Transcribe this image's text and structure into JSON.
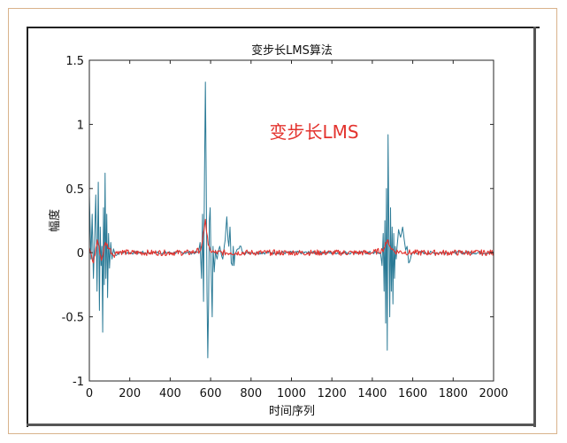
{
  "chart_data": {
    "type": "line",
    "title": "变步长LMS算法",
    "xlabel": "时间序列",
    "ylabel": "幅度",
    "xlim": [
      0,
      2000
    ],
    "ylim": [
      -1,
      1.5
    ],
    "xticks": [
      "0",
      "200",
      "400",
      "600",
      "800",
      "1000",
      "1200",
      "1400",
      "1600",
      "1800",
      "2000"
    ],
    "yticks": [
      "1.5",
      "1",
      "0.5",
      "0",
      "-0.5",
      "-1"
    ],
    "grid": false,
    "legend": "none",
    "annotation": {
      "text": "变步长LMS",
      "color": "#e3332e"
    },
    "series": [
      {
        "color": "#2a7a96",
        "points": [
          [
            0,
            0.45
          ],
          [
            8,
            -0.05
          ],
          [
            14,
            0.3
          ],
          [
            20,
            -0.2
          ],
          [
            26,
            0.1
          ],
          [
            32,
            0.45
          ],
          [
            38,
            -0.3
          ],
          [
            44,
            0.55
          ],
          [
            50,
            -0.45
          ],
          [
            54,
            0.2
          ],
          [
            58,
            -0.1
          ],
          [
            62,
            0.05
          ],
          [
            66,
            -0.62
          ],
          [
            70,
            0.35
          ],
          [
            74,
            -0.25
          ],
          [
            78,
            0.62
          ],
          [
            82,
            -0.2
          ],
          [
            86,
            0.3
          ],
          [
            90,
            -0.35
          ],
          [
            95,
            0.15
          ],
          [
            100,
            -0.12
          ],
          [
            106,
            0.08
          ],
          [
            112,
            -0.05
          ],
          [
            120,
            0.03
          ],
          [
            130,
            -0.02
          ],
          [
            150,
            0.0
          ],
          [
            200,
            0.0
          ],
          [
            300,
            0.0
          ],
          [
            400,
            0.0
          ],
          [
            500,
            0.0
          ],
          [
            540,
            0.0
          ],
          [
            548,
            0.08
          ],
          [
            555,
            -0.2
          ],
          [
            560,
            0.3
          ],
          [
            565,
            -0.38
          ],
          [
            570,
            0.6
          ],
          [
            574,
            1.33
          ],
          [
            578,
            0.6
          ],
          [
            582,
            -0.3
          ],
          [
            586,
            -0.82
          ],
          [
            590,
            -0.4
          ],
          [
            594,
            0.25
          ],
          [
            598,
            0.35
          ],
          [
            602,
            -0.1
          ],
          [
            608,
            -0.5
          ],
          [
            612,
            0.05
          ],
          [
            618,
            -0.15
          ],
          [
            624,
            0.02
          ],
          [
            632,
            -0.05
          ],
          [
            645,
            0.05
          ],
          [
            660,
            -0.05
          ],
          [
            672,
            0.1
          ],
          [
            680,
            0.28
          ],
          [
            686,
            0.1
          ],
          [
            690,
            0.05
          ],
          [
            696,
            0.2
          ],
          [
            702,
            -0.08
          ],
          [
            708,
            -0.1
          ],
          [
            712,
            0.05
          ],
          [
            716,
            -0.1
          ],
          [
            720,
            -0.02
          ],
          [
            735,
            0.03
          ],
          [
            750,
            0.05
          ],
          [
            760,
            0.0
          ],
          [
            800,
            0.0
          ],
          [
            900,
            0.0
          ],
          [
            1000,
            0.0
          ],
          [
            1100,
            0.0
          ],
          [
            1200,
            0.0
          ],
          [
            1300,
            0.0
          ],
          [
            1400,
            0.0
          ],
          [
            1440,
            0.0
          ],
          [
            1448,
            -0.1
          ],
          [
            1454,
            0.15
          ],
          [
            1458,
            -0.3
          ],
          [
            1462,
            0.25
          ],
          [
            1466,
            -0.55
          ],
          [
            1470,
            0.5
          ],
          [
            1474,
            -0.76
          ],
          [
            1478,
            0.92
          ],
          [
            1482,
            0.2
          ],
          [
            1486,
            -0.5
          ],
          [
            1490,
            0.35
          ],
          [
            1494,
            -0.3
          ],
          [
            1498,
            0.2
          ],
          [
            1502,
            -0.4
          ],
          [
            1506,
            0.15
          ],
          [
            1510,
            -0.2
          ],
          [
            1514,
            0.05
          ],
          [
            1518,
            -0.05
          ],
          [
            1530,
            0.18
          ],
          [
            1540,
            0.12
          ],
          [
            1550,
            0.2
          ],
          [
            1558,
            0.1
          ],
          [
            1565,
            0.02
          ],
          [
            1572,
            0.05
          ],
          [
            1580,
            -0.08
          ],
          [
            1600,
            0.0
          ],
          [
            1700,
            0.0
          ],
          [
            1800,
            0.0
          ],
          [
            1900,
            0.0
          ],
          [
            2000,
            0.0
          ]
        ]
      },
      {
        "color": "#e3332e",
        "points": [
          [
            0,
            0.04
          ],
          [
            20,
            -0.08
          ],
          [
            40,
            0.1
          ],
          [
            60,
            -0.06
          ],
          [
            80,
            0.08
          ],
          [
            100,
            0.03
          ],
          [
            120,
            -0.02
          ],
          [
            140,
            0.01
          ],
          [
            200,
            0.0
          ],
          [
            300,
            0.0
          ],
          [
            400,
            0.0
          ],
          [
            500,
            0.0
          ],
          [
            550,
            0.02
          ],
          [
            560,
            0.1
          ],
          [
            568,
            0.18
          ],
          [
            574,
            0.26
          ],
          [
            580,
            0.16
          ],
          [
            588,
            0.06
          ],
          [
            598,
            0.02
          ],
          [
            620,
            0.0
          ],
          [
            700,
            0.0
          ],
          [
            800,
            0.0
          ],
          [
            900,
            0.0
          ],
          [
            1000,
            0.0
          ],
          [
            1100,
            0.0
          ],
          [
            1200,
            0.0
          ],
          [
            1300,
            0.0
          ],
          [
            1400,
            0.0
          ],
          [
            1450,
            0.02
          ],
          [
            1470,
            0.07
          ],
          [
            1478,
            0.1
          ],
          [
            1490,
            0.04
          ],
          [
            1510,
            0.01
          ],
          [
            1600,
            0.0
          ],
          [
            1700,
            0.0
          ],
          [
            1800,
            0.0
          ],
          [
            1900,
            0.0
          ],
          [
            2000,
            0.0
          ]
        ]
      }
    ]
  }
}
